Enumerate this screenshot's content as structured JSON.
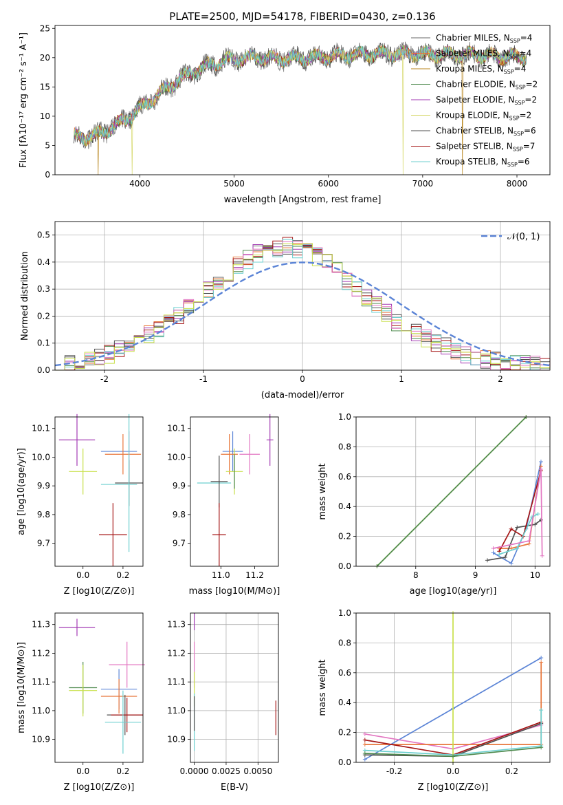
{
  "figure_title": "PLATE=2500, MJD=54178, FIBERID=0430, z=0.136",
  "palette": [
    "#6a6a6a",
    "#e8763a",
    "#b8861e",
    "#4e8a4e",
    "#a23ab3",
    "#d6d86a",
    "#4f4f4f",
    "#a51616",
    "#6ccfcf",
    "#5b84d6",
    "#e377c2",
    "#c8e04a"
  ],
  "chart_data": [
    {
      "id": "spectrum",
      "type": "line",
      "title": "PLATE=2500, MJD=54178, FIBERID=0430, z=0.136",
      "xlabel": "wavelength [Angstrom, rest frame]",
      "ylabel": "Flux [fλ10⁻¹⁷ erg cm⁻² s⁻¹ A⁻¹]",
      "xlim": [
        3100,
        8350
      ],
      "ylim": [
        0,
        25.5
      ],
      "xticks": [
        4000,
        5000,
        6000,
        7000,
        8000
      ],
      "yticks": [
        0,
        5,
        10,
        15,
        20,
        25
      ],
      "grid": false,
      "legend": "top-right",
      "x_range_data": [
        3300,
        8100
      ],
      "continuum_points": [
        [
          3300,
          6.5
        ],
        [
          3500,
          6.5
        ],
        [
          3700,
          8
        ],
        [
          3900,
          10
        ],
        [
          4100,
          12.5
        ],
        [
          4300,
          15
        ],
        [
          4500,
          17
        ],
        [
          4700,
          18.5
        ],
        [
          4900,
          19.5
        ],
        [
          5200,
          20
        ],
        [
          5500,
          19.8
        ],
        [
          5800,
          20
        ],
        [
          6000,
          20.2
        ],
        [
          6300,
          20.5
        ],
        [
          6600,
          20.7
        ],
        [
          6900,
          20.6
        ],
        [
          7200,
          20.5
        ],
        [
          7500,
          20.5
        ],
        [
          7800,
          20.2
        ],
        [
          8100,
          20
        ]
      ],
      "series": [
        {
          "name": "Chabrier MILES, N_SSP=4"
        },
        {
          "name": "Salpeter MILES, N_SSP=4"
        },
        {
          "name": "Kroupa MILES, N_SSP=4"
        },
        {
          "name": "Chabrier ELODIE, N_SSP=2"
        },
        {
          "name": "Salpeter ELODIE, N_SSP=2"
        },
        {
          "name": "Kroupa ELODIE, N_SSP=2"
        },
        {
          "name": "Chabrier STELIB, N_SSP=6"
        },
        {
          "name": "Salpeter STELIB, N_SSP=7"
        },
        {
          "name": "Kroupa STELIB, N_SSP=6"
        }
      ],
      "legend_entries": [
        {
          "pre": "Chabrier MILES, N",
          "sub": "SSP",
          "post": "=4"
        },
        {
          "pre": "Salpeter MILES, N",
          "sub": "SSP",
          "post": "=4"
        },
        {
          "pre": "Kroupa MILES, N",
          "sub": "SSP",
          "post": "=4"
        },
        {
          "pre": "Chabrier ELODIE, N",
          "sub": "SSP",
          "post": "=2"
        },
        {
          "pre": "Salpeter ELODIE, N",
          "sub": "SSP",
          "post": "=2"
        },
        {
          "pre": "Kroupa ELODIE, N",
          "sub": "SSP",
          "post": "=2"
        },
        {
          "pre": "Chabrier STELIB, N",
          "sub": "SSP",
          "post": "=6"
        },
        {
          "pre": "Salpeter STELIB, N",
          "sub": "SSP",
          "post": "=7"
        },
        {
          "pre": "Kroupa STELIB, N",
          "sub": "SSP",
          "post": "=6"
        }
      ],
      "dropouts": [
        [
          3560,
          0
        ],
        [
          3920,
          0
        ],
        [
          6790,
          0
        ],
        [
          7420,
          0
        ]
      ]
    },
    {
      "id": "residuals",
      "type": "area",
      "xlabel": "(data-model)/error",
      "ylabel": "Normed distribution",
      "xlim": [
        -2.5,
        2.5
      ],
      "ylim": [
        0,
        0.55
      ],
      "xticks": [
        -2,
        -1,
        0,
        1,
        2
      ],
      "yticks": [
        0.0,
        0.1,
        0.2,
        0.3,
        0.4,
        0.5
      ],
      "grid": true,
      "legend": "top-right",
      "legend_label": "𝒩(0, 1)",
      "bin_width": 0.1,
      "bin_start": -2.5,
      "histogram_heights": [
        0.02,
        0.025,
        0.03,
        0.04,
        0.05,
        0.06,
        0.075,
        0.09,
        0.11,
        0.13,
        0.15,
        0.17,
        0.2,
        0.23,
        0.26,
        0.3,
        0.33,
        0.36,
        0.39,
        0.41,
        0.43,
        0.44,
        0.45,
        0.46,
        0.45,
        0.44,
        0.42,
        0.4,
        0.37,
        0.33,
        0.3,
        0.27,
        0.24,
        0.21,
        0.18,
        0.16,
        0.14,
        0.12,
        0.1,
        0.085,
        0.07,
        0.06,
        0.05,
        0.04,
        0.035,
        0.03,
        0.025,
        0.02,
        0.018,
        0.015
      ],
      "gaussian": {
        "mu": 0,
        "sigma": 1,
        "name": "N(0,1)"
      }
    },
    {
      "id": "age_vs_Z",
      "type": "scatter",
      "xlabel": "Z [log10(Z/Z⊙)]",
      "ylabel": "age [log10(age/yr)]",
      "xlim": [
        -0.14,
        0.3
      ],
      "ylim": [
        9.62,
        10.14
      ],
      "xticks": [
        0.0,
        0.2
      ],
      "yticks": [
        9.7,
        9.8,
        9.9,
        10.0,
        10.1
      ],
      "points": [
        {
          "x": -0.03,
          "y": 10.06,
          "xerr": 0.09,
          "yerr": 0.09,
          "c": 4
        },
        {
          "x": 0.18,
          "y": 10.02,
          "xerr": 0.09,
          "yerr": 0.0,
          "c": 9
        },
        {
          "x": 0.2,
          "y": 10.01,
          "xerr": 0.09,
          "yerr": 0.07,
          "c": 1
        },
        {
          "x": 0.23,
          "y": 10.0,
          "xerr": 0.0,
          "yerr": 0.09,
          "c": 10
        },
        {
          "x": 0.0,
          "y": 9.95,
          "xerr": 0.07,
          "yerr": 0.08,
          "c": 11
        },
        {
          "x": 0.23,
          "y": 9.91,
          "xerr": 0.07,
          "yerr": 0.08,
          "c": 6
        },
        {
          "x": 0.18,
          "y": 9.905,
          "xerr": 0.09,
          "yerr": 0.0,
          "c": 8
        },
        {
          "x": 0.23,
          "y": 9.91,
          "xerr": 0.0,
          "yerr": 0.24,
          "c": 8
        },
        {
          "x": 0.15,
          "y": 9.73,
          "xerr": 0.07,
          "yerr": 0.11,
          "c": 7
        }
      ]
    },
    {
      "id": "age_vs_mass",
      "type": "scatter",
      "xlabel": "mass [log10(M/M⊙)]",
      "ylabel": "",
      "xlim": [
        10.82,
        11.34
      ],
      "ylim": [
        9.62,
        10.14
      ],
      "xticks": [
        11.0,
        11.2
      ],
      "yticks": [
        9.7,
        9.8,
        9.9,
        10.0,
        10.1
      ],
      "points": [
        {
          "x": 11.29,
          "y": 10.06,
          "xerr": 0.02,
          "yerr": 0.09,
          "c": 4
        },
        {
          "x": 11.07,
          "y": 10.02,
          "xerr": 0.06,
          "yerr": 0.07,
          "c": 9
        },
        {
          "x": 11.05,
          "y": 10.01,
          "xerr": 0.05,
          "yerr": 0.07,
          "c": 1
        },
        {
          "x": 11.17,
          "y": 10.01,
          "xerr": 0.06,
          "yerr": 0.07,
          "c": 10
        },
        {
          "x": 11.08,
          "y": 9.95,
          "xerr": 0.05,
          "yerr": 0.08,
          "c": 11
        },
        {
          "x": 11.08,
          "y": 9.95,
          "xerr": 0.0,
          "yerr": 0.06,
          "c": 3
        },
        {
          "x": 10.96,
          "y": 9.91,
          "xerr": 0.1,
          "yerr": 0.0,
          "c": 8
        },
        {
          "x": 10.99,
          "y": 9.915,
          "xerr": 0.05,
          "yerr": 0.09,
          "c": 6
        },
        {
          "x": 10.99,
          "y": 9.73,
          "xerr": 0.04,
          "yerr": 0.11,
          "c": 7
        }
      ]
    },
    {
      "id": "weight_vs_age",
      "type": "line",
      "xlabel": "age [log10(age/yr)]",
      "ylabel": "mass weight",
      "xlim": [
        7.0,
        10.25
      ],
      "ylim": [
        0,
        1.0
      ],
      "xticks": [
        8,
        9,
        10
      ],
      "yticks": [
        0.0,
        0.2,
        0.4,
        0.6,
        0.8,
        1.0
      ],
      "grid": true,
      "lines": [
        {
          "c": 11,
          "pts": [
            [
              7.35,
              0
            ],
            [
              9.85,
              1.0
            ]
          ]
        },
        {
          "c": 3,
          "pts": [
            [
              7.35,
              0
            ],
            [
              9.85,
              1.0
            ]
          ]
        },
        {
          "c": 9,
          "pts": [
            [
              9.3,
              0.09
            ],
            [
              9.6,
              0.02
            ],
            [
              9.85,
              0.25
            ],
            [
              10.1,
              0.7
            ]
          ]
        },
        {
          "c": 1,
          "pts": [
            [
              9.4,
              0.12
            ],
            [
              9.6,
              0.12
            ],
            [
              9.9,
              0.15
            ],
            [
              10.1,
              0.67
            ]
          ]
        },
        {
          "c": 6,
          "pts": [
            [
              9.2,
              0.04
            ],
            [
              9.5,
              0.06
            ],
            [
              9.7,
              0.26
            ],
            [
              10.0,
              0.28
            ],
            [
              10.1,
              0.31
            ]
          ]
        },
        {
          "c": 7,
          "pts": [
            [
              9.4,
              0.1
            ],
            [
              9.6,
              0.25
            ],
            [
              9.8,
              0.2
            ],
            [
              10.1,
              0.64
            ]
          ]
        },
        {
          "c": 8,
          "pts": [
            [
              9.4,
              0.08
            ],
            [
              9.7,
              0.12
            ],
            [
              9.95,
              0.33
            ],
            [
              10.05,
              0.35
            ]
          ]
        },
        {
          "c": 10,
          "pts": [
            [
              9.3,
              0.12
            ],
            [
              9.9,
              0.17
            ],
            [
              10.1,
              0.65
            ],
            [
              10.12,
              0.07
            ]
          ]
        }
      ]
    },
    {
      "id": "mass_vs_Z",
      "type": "scatter",
      "xlabel": "Z [log10(Z/Z⊙)]",
      "ylabel": "mass [log10(M/M⊙)]",
      "xlim": [
        -0.14,
        0.3
      ],
      "ylim": [
        10.82,
        11.34
      ],
      "xticks": [
        0.0,
        0.2
      ],
      "yticks": [
        10.9,
        11.0,
        11.1,
        11.2,
        11.3
      ],
      "points": [
        {
          "x": -0.03,
          "y": 11.29,
          "xerr": 0.09,
          "yerr": 0.03,
          "c": 4
        },
        {
          "x": 0.22,
          "y": 11.16,
          "xerr": 0.09,
          "yerr": 0.08,
          "c": 10
        },
        {
          "x": 0.18,
          "y": 11.075,
          "xerr": 0.09,
          "yerr": 0.07,
          "c": 9
        },
        {
          "x": 0.0,
          "y": 11.08,
          "xerr": 0.07,
          "yerr": 0.09,
          "c": 3
        },
        {
          "x": 0.0,
          "y": 11.07,
          "xerr": 0.07,
          "yerr": 0.09,
          "c": 11
        },
        {
          "x": 0.18,
          "y": 11.05,
          "xerr": 0.09,
          "yerr": 0.06,
          "c": 1
        },
        {
          "x": 0.21,
          "y": 10.985,
          "xerr": 0.09,
          "yerr": 0.07,
          "c": 6
        },
        {
          "x": 0.22,
          "y": 10.985,
          "xerr": 0.08,
          "yerr": 0.06,
          "c": 7
        },
        {
          "x": 0.2,
          "y": 10.96,
          "xerr": 0.09,
          "yerr": 0.11,
          "c": 8
        }
      ]
    },
    {
      "id": "mass_vs_ebv",
      "type": "scatter",
      "xlabel": "E(B-V)",
      "ylabel": "",
      "xlim": [
        -0.0003,
        0.0066
      ],
      "ylim": [
        10.82,
        11.34
      ],
      "xticks": [
        0.0,
        0.0025,
        0.005
      ],
      "xtick_labels": [
        "0.0000",
        "0.0025",
        "0.0050"
      ],
      "yticks": [
        10.9,
        11.0,
        11.1,
        11.2,
        11.3
      ],
      "grid": true,
      "points": [
        {
          "x": 0.0,
          "y": 11.31,
          "xerr": 0,
          "yerr": 0.03,
          "c": 4
        },
        {
          "x": 0.0,
          "y": 11.16,
          "xerr": 0,
          "yerr": 0.08,
          "c": 10
        },
        {
          "x": 0.0,
          "y": 11.075,
          "xerr": 0,
          "yerr": 0.06,
          "c": 11
        },
        {
          "x": 0.0,
          "y": 10.96,
          "xerr": 0,
          "yerr": 0.1,
          "c": 8
        },
        {
          "x": 0.0,
          "y": 10.99,
          "xerr": 0,
          "yerr": 0.06,
          "c": 6
        },
        {
          "x": 0.0064,
          "y": 10.975,
          "xerr": 0,
          "yerr": 0.06,
          "c": 7
        }
      ]
    },
    {
      "id": "weight_vs_Z",
      "type": "line",
      "xlabel": "Z [log10(Z/Z⊙)]",
      "ylabel": "mass weight",
      "xlim": [
        -0.33,
        0.33
      ],
      "ylim": [
        0,
        1.0
      ],
      "xticks": [
        -0.2,
        0.0,
        0.2
      ],
      "yticks": [
        0.0,
        0.2,
        0.4,
        0.6,
        0.8,
        1.0
      ],
      "grid": true,
      "lines": [
        {
          "c": 9,
          "pts": [
            [
              -0.3,
              0.02
            ],
            [
              0.0,
              0.36
            ],
            [
              0.3,
              0.7
            ]
          ]
        },
        {
          "c": 10,
          "pts": [
            [
              -0.3,
              0.19
            ],
            [
              0.0,
              0.09
            ],
            [
              0.3,
              0.25
            ]
          ]
        },
        {
          "c": 1,
          "pts": [
            [
              -0.3,
              0.12
            ],
            [
              0.0,
              0.12
            ],
            [
              0.3,
              0.12
            ],
            [
              0.3,
              0.67
            ]
          ]
        },
        {
          "c": 7,
          "pts": [
            [
              -0.3,
              0.15
            ],
            [
              0.0,
              0.05
            ],
            [
              0.3,
              0.27
            ]
          ]
        },
        {
          "c": 6,
          "pts": [
            [
              -0.3,
              0.05
            ],
            [
              0.0,
              0.04
            ],
            [
              0.3,
              0.26
            ]
          ]
        },
        {
          "c": 8,
          "pts": [
            [
              -0.3,
              0.08
            ],
            [
              0.0,
              0.05
            ],
            [
              0.3,
              0.11
            ],
            [
              0.3,
              0.35
            ]
          ]
        },
        {
          "c": 11,
          "pts": [
            [
              0.0,
              0.0
            ],
            [
              0.0,
              1.0
            ]
          ]
        },
        {
          "c": 3,
          "pts": [
            [
              -0.3,
              0.06
            ],
            [
              0.0,
              0.04
            ],
            [
              0.3,
              0.1
            ]
          ]
        }
      ]
    }
  ]
}
